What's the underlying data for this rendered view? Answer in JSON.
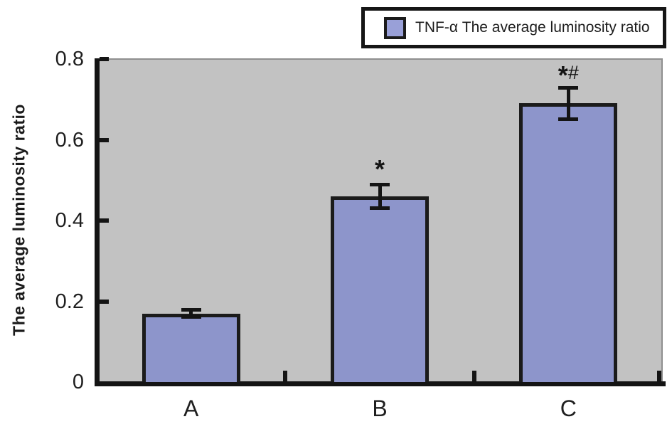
{
  "legend": {
    "label": "TNF-α The average luminosity ratio"
  },
  "colors": {
    "bar_fill": "#8d95cb",
    "legend_swatch_fill": "#99a0d8",
    "bar_border": "#1b1b1b",
    "axis": "#141414",
    "plot_background": "#c2c2c2",
    "plot_edge": "#8f8f8f",
    "text": "#1f1f1f"
  },
  "chart_data": {
    "type": "bar",
    "title": "",
    "xlabel": "",
    "ylabel": "The average luminosity ratio",
    "categories": [
      "A",
      "B",
      "C"
    ],
    "series": [
      {
        "name": "TNF-α The average luminosity ratio",
        "values": [
          0.17,
          0.46,
          0.69
        ],
        "errors": [
          0.01,
          0.03,
          0.04
        ]
      }
    ],
    "annotations": [
      "",
      "*",
      "*#"
    ],
    "ylim": [
      0,
      0.8
    ],
    "yticks": [
      0,
      0.2,
      0.4,
      0.6,
      0.8
    ],
    "ytick_labels": [
      "0",
      "0.2",
      "0.4",
      "0.6",
      "0.8"
    ],
    "grid": false,
    "legend_position": "top-right",
    "plot_bg_on": true
  }
}
